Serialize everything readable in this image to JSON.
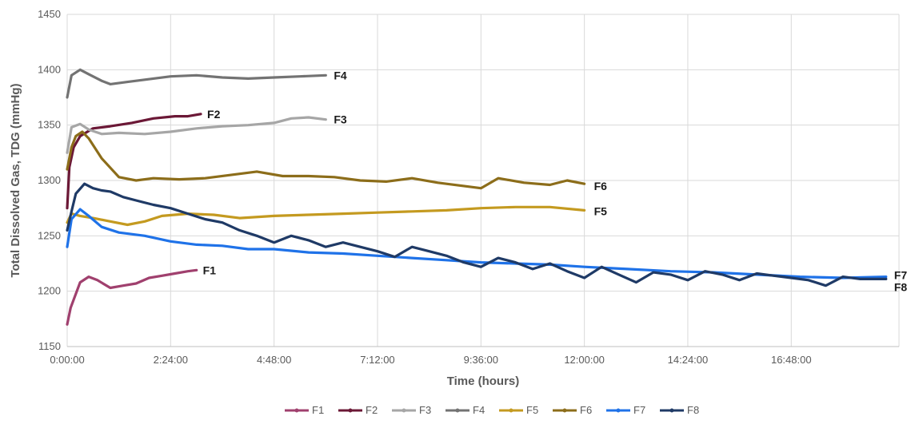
{
  "chart_data": {
    "type": "line",
    "xlabel": "Time (hours)",
    "ylabel": "Total Dissolved Gas, TDG (mmHg)",
    "ylim": [
      1150,
      1450
    ],
    "yticks": [
      1150,
      1200,
      1250,
      1300,
      1350,
      1400,
      1450
    ],
    "xlim": [
      0,
      19.3
    ],
    "xticks": [
      {
        "value": 0,
        "label": "0:00:00"
      },
      {
        "value": 2.4,
        "label": "2:24:00"
      },
      {
        "value": 4.8,
        "label": "4:48:00"
      },
      {
        "value": 7.2,
        "label": "7:12:00"
      },
      {
        "value": 9.6,
        "label": "9:36:00"
      },
      {
        "value": 12.0,
        "label": "12:00:00"
      },
      {
        "value": 14.4,
        "label": "14:24:00"
      },
      {
        "value": 16.8,
        "label": "16:48:00"
      }
    ],
    "vertical_grid": true,
    "horizontal_grid": true,
    "legend_position": "bottom",
    "series": [
      {
        "name": "F1",
        "color": "#a0406e",
        "label": "F1",
        "label_offset": [
          8,
          5
        ],
        "x": [
          0,
          0.08,
          0.3,
          0.5,
          0.7,
          1.0,
          1.3,
          1.6,
          1.9,
          2.2,
          2.5,
          2.8,
          3.0
        ],
        "y": [
          1170,
          1185,
          1208,
          1213,
          1210,
          1203,
          1205,
          1207,
          1212,
          1214,
          1216,
          1218,
          1219
        ]
      },
      {
        "name": "F2",
        "color": "#6b1836",
        "label": "F2",
        "label_offset": [
          8,
          5
        ],
        "x": [
          0,
          0.05,
          0.15,
          0.3,
          0.6,
          1.0,
          1.5,
          2.0,
          2.5,
          2.8,
          3.1
        ],
        "y": [
          1275,
          1312,
          1330,
          1340,
          1347,
          1349,
          1352,
          1356,
          1358,
          1358,
          1360
        ]
      },
      {
        "name": "F3",
        "color": "#a6a6a6",
        "label": "F3",
        "label_offset": [
          10,
          5
        ],
        "x": [
          0,
          0.1,
          0.3,
          0.5,
          0.8,
          1.2,
          1.8,
          2.4,
          3.0,
          3.6,
          4.2,
          4.8,
          5.2,
          5.6,
          6.0
        ],
        "y": [
          1325,
          1348,
          1351,
          1346,
          1342,
          1343,
          1342,
          1344,
          1347,
          1349,
          1350,
          1352,
          1356,
          1357,
          1355
        ]
      },
      {
        "name": "F4",
        "color": "#737373",
        "label": "F4",
        "label_offset": [
          10,
          5
        ],
        "x": [
          0,
          0.1,
          0.3,
          0.5,
          0.8,
          1.0,
          1.4,
          1.8,
          2.4,
          3.0,
          3.6,
          4.2,
          4.8,
          5.4,
          6.0
        ],
        "y": [
          1375,
          1395,
          1400,
          1396,
          1390,
          1387,
          1389,
          1391,
          1394,
          1395,
          1393,
          1392,
          1393,
          1394,
          1395
        ]
      },
      {
        "name": "F5",
        "color": "#c49a20",
        "label": "F5",
        "label_offset": [
          12,
          6
        ],
        "x": [
          0,
          0.1,
          0.3,
          0.6,
          1.0,
          1.4,
          1.8,
          2.2,
          2.8,
          3.4,
          4.0,
          4.8,
          5.6,
          6.4,
          7.2,
          8.0,
          8.8,
          9.6,
          10.4,
          11.2,
          12.0
        ],
        "y": [
          1262,
          1270,
          1268,
          1266,
          1263,
          1260,
          1263,
          1268,
          1270,
          1269,
          1266,
          1268,
          1269,
          1270,
          1271,
          1272,
          1273,
          1275,
          1276,
          1276,
          1273
        ]
      },
      {
        "name": "F6",
        "color": "#8c6d1a",
        "label": "F6",
        "label_offset": [
          12,
          8
        ],
        "x": [
          0,
          0.1,
          0.2,
          0.35,
          0.5,
          0.8,
          1.2,
          1.6,
          2.0,
          2.6,
          3.2,
          3.8,
          4.4,
          5.0,
          5.6,
          6.2,
          6.8,
          7.4,
          8.0,
          8.6,
          9.2,
          9.6,
          10.0,
          10.6,
          11.2,
          11.6,
          12.0
        ],
        "y": [
          1310,
          1330,
          1340,
          1344,
          1338,
          1320,
          1303,
          1300,
          1302,
          1301,
          1302,
          1305,
          1308,
          1304,
          1304,
          1303,
          1300,
          1299,
          1302,
          1298,
          1295,
          1293,
          1302,
          1298,
          1296,
          1300,
          1297
        ]
      },
      {
        "name": "F7",
        "color": "#1f72e8",
        "label": "F7",
        "label_offset": [
          10,
          3
        ],
        "x": [
          0,
          0.1,
          0.3,
          0.5,
          0.8,
          1.2,
          1.8,
          2.4,
          3.0,
          3.6,
          4.2,
          4.8,
          5.6,
          6.4,
          7.2,
          8.0,
          8.8,
          9.6,
          10.4,
          11.2,
          12.0,
          13.0,
          14.0,
          15.0,
          16.0,
          17.0,
          18.0,
          19.0
        ],
        "y": [
          1240,
          1265,
          1274,
          1268,
          1258,
          1253,
          1250,
          1245,
          1242,
          1241,
          1238,
          1238,
          1235,
          1234,
          1232,
          1230,
          1228,
          1226,
          1225,
          1224,
          1222,
          1220,
          1218,
          1217,
          1215,
          1213,
          1212,
          1213
        ]
      },
      {
        "name": "F8",
        "color": "#1f3a66",
        "label": "F8",
        "label_offset": [
          10,
          15
        ],
        "x": [
          0,
          0.1,
          0.2,
          0.4,
          0.6,
          0.8,
          1.0,
          1.3,
          1.6,
          2.0,
          2.4,
          2.8,
          3.2,
          3.6,
          4.0,
          4.4,
          4.8,
          5.2,
          5.6,
          6.0,
          6.4,
          6.8,
          7.2,
          7.6,
          8.0,
          8.4,
          8.8,
          9.2,
          9.6,
          10.0,
          10.4,
          10.8,
          11.2,
          11.6,
          12.0,
          12.4,
          12.8,
          13.2,
          13.6,
          14.0,
          14.4,
          14.8,
          15.2,
          15.6,
          16.0,
          16.4,
          16.8,
          17.2,
          17.6,
          18.0,
          18.4,
          19.0
        ],
        "y": [
          1255,
          1272,
          1288,
          1297,
          1293,
          1291,
          1290,
          1285,
          1282,
          1278,
          1275,
          1270,
          1265,
          1262,
          1255,
          1250,
          1244,
          1250,
          1246,
          1240,
          1244,
          1240,
          1236,
          1231,
          1240,
          1236,
          1232,
          1226,
          1222,
          1230,
          1226,
          1220,
          1225,
          1218,
          1212,
          1222,
          1215,
          1208,
          1217,
          1215,
          1210,
          1218,
          1215,
          1210,
          1216,
          1214,
          1212,
          1210,
          1205,
          1213,
          1211,
          1211
        ]
      }
    ]
  }
}
